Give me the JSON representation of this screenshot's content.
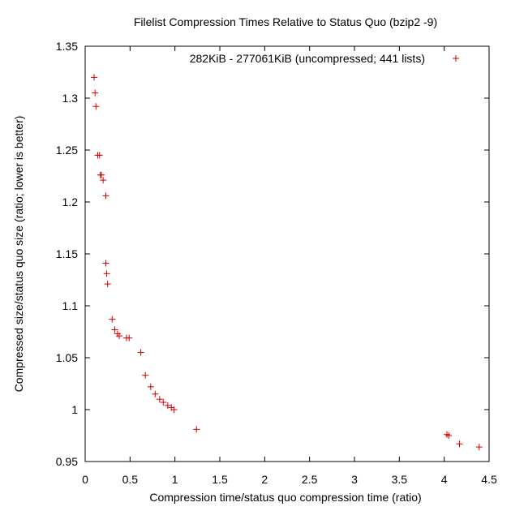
{
  "chart_data": {
    "type": "scatter",
    "title": "Filelist Compression Times Relative to Status Quo (bzip2 -9)",
    "xlabel": "Compression time/status quo compression time (ratio)",
    "ylabel": "Compressed size/status quo size (ratio; lower is better)",
    "xlim": [
      0,
      4.5
    ],
    "ylim": [
      0.95,
      1.35
    ],
    "xticks": [
      "0",
      "0.5",
      "1",
      "1.5",
      "2",
      "2.5",
      "3",
      "3.5",
      "4",
      "4.5"
    ],
    "yticks": [
      "0.95",
      "1",
      "1.05",
      "1.1",
      "1.15",
      "1.2",
      "1.25",
      "1.3",
      "1.35"
    ],
    "xtick_values": [
      0,
      0.5,
      1,
      1.5,
      2,
      2.5,
      3,
      3.5,
      4,
      4.5
    ],
    "ytick_values": [
      0.95,
      1.0,
      1.05,
      1.1,
      1.15,
      1.2,
      1.25,
      1.3,
      1.35
    ],
    "grid": false,
    "legend_position": "top-right",
    "marker": "plus",
    "colors": {
      "series": "#cc0000",
      "axis": "#000000"
    },
    "series": [
      {
        "name": "282KiB - 277061KiB (uncompressed; 441 lists)",
        "points": [
          [
            0.1,
            1.32
          ],
          [
            0.11,
            1.305
          ],
          [
            0.12,
            1.292
          ],
          [
            0.14,
            1.245
          ],
          [
            0.16,
            1.245
          ],
          [
            0.17,
            1.226
          ],
          [
            0.18,
            1.226
          ],
          [
            0.2,
            1.221
          ],
          [
            0.23,
            1.206
          ],
          [
            0.23,
            1.141
          ],
          [
            0.24,
            1.131
          ],
          [
            0.25,
            1.121
          ],
          [
            0.3,
            1.087
          ],
          [
            0.33,
            1.077
          ],
          [
            0.36,
            1.073
          ],
          [
            0.38,
            1.071
          ],
          [
            0.46,
            1.069
          ],
          [
            0.49,
            1.069
          ],
          [
            0.62,
            1.055
          ],
          [
            0.67,
            1.033
          ],
          [
            0.73,
            1.022
          ],
          [
            0.78,
            1.015
          ],
          [
            0.83,
            1.01
          ],
          [
            0.87,
            1.007
          ],
          [
            0.92,
            1.004
          ],
          [
            0.96,
            1.002
          ],
          [
            0.99,
            1.0
          ],
          [
            1.24,
            0.981
          ],
          [
            4.03,
            0.976
          ],
          [
            4.05,
            0.975
          ],
          [
            4.17,
            0.967
          ],
          [
            4.39,
            0.964
          ]
        ]
      }
    ]
  }
}
